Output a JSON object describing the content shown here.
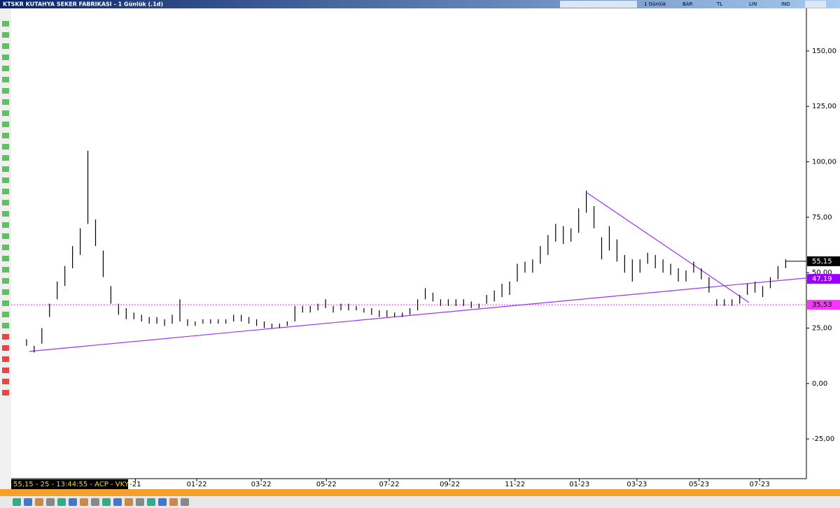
{
  "window": {
    "title": "KTSKR KUTAHYA SEKER FABRIKASI - 1 Günlük (.1d)",
    "toolbar": [
      "1 Günlük",
      "BAR",
      "TL",
      "LIN",
      "IND"
    ],
    "status": "55,15 - 25 - 13:44:55 - ACP - VKY"
  },
  "chart_data": {
    "type": "ohlc",
    "color": "#000000",
    "high": [
      20,
      17,
      25,
      36,
      46,
      53,
      62,
      70,
      105,
      74,
      60,
      44,
      36,
      34,
      32,
      31,
      30,
      30,
      29,
      31,
      38,
      29,
      28,
      29,
      29,
      29,
      29,
      31,
      31,
      30,
      29,
      28,
      27,
      27,
      28,
      35,
      35,
      35,
      36,
      38,
      35,
      36,
      36,
      35,
      34,
      34,
      33,
      33,
      32,
      32,
      34,
      38,
      43,
      41,
      38,
      38,
      38,
      38,
      37,
      36,
      40,
      42,
      45,
      46,
      54,
      55,
      56,
      62,
      67,
      72,
      71,
      70,
      79,
      87,
      80,
      66,
      71,
      65,
      58,
      56,
      56,
      59,
      58,
      56,
      54,
      52,
      51,
      55,
      52,
      48,
      38,
      38,
      38,
      40,
      45,
      46,
      44,
      48,
      53,
      56
    ],
    "low": [
      17,
      14,
      18,
      30,
      38,
      44,
      52,
      58,
      72,
      62,
      48,
      36,
      31,
      29,
      29,
      28,
      27,
      27,
      26,
      27,
      28,
      26,
      26,
      27,
      27,
      27,
      27,
      28,
      28,
      27,
      26,
      25,
      25,
      25,
      26,
      28,
      32,
      32,
      33,
      34,
      32,
      33,
      33,
      33,
      32,
      31,
      30,
      30,
      30,
      30,
      31,
      33,
      38,
      37,
      35,
      35,
      35,
      35,
      34,
      34,
      36,
      37,
      39,
      40,
      46,
      50,
      50,
      54,
      58,
      64,
      63,
      64,
      68,
      77,
      70,
      56,
      60,
      55,
      50,
      46,
      50,
      54,
      52,
      50,
      49,
      46,
      46,
      50,
      47,
      41,
      35,
      35,
      35,
      36,
      40,
      41,
      39,
      43,
      47,
      52
    ],
    "xlim": [
      -2.0,
      101.7
    ],
    "xticks": [
      {
        "value": 14.2,
        "label": "-21"
      },
      {
        "value": 22.2,
        "label": "01-22"
      },
      {
        "value": 30.6,
        "label": "03-22"
      },
      {
        "value": 39.1,
        "label": "05-22"
      },
      {
        "value": 47.3,
        "label": "07-22"
      },
      {
        "value": 55.2,
        "label": "09-22"
      },
      {
        "value": 63.7,
        "label": "11-22"
      },
      {
        "value": 72.1,
        "label": "01-23"
      },
      {
        "value": 79.6,
        "label": "03-23"
      },
      {
        "value": 87.7,
        "label": "05-23"
      },
      {
        "value": 95.6,
        "label": "07-23"
      }
    ],
    "ylim": [
      -42.9,
      169.2
    ],
    "yticks": [
      {
        "value": -25,
        "label": "-25,00"
      },
      {
        "value": 0,
        "label": "0,00"
      },
      {
        "value": 25,
        "label": "25,00"
      },
      {
        "value": 50,
        "label": "50,00"
      },
      {
        "value": 75,
        "label": "75,00"
      },
      {
        "value": 100,
        "label": "100,00"
      },
      {
        "value": 125,
        "label": "125,00"
      },
      {
        "value": 150,
        "label": "150,00"
      }
    ],
    "trendlines": [
      {
        "x": [
          0.37,
          101.7
        ],
        "y": [
          14.5,
          47.6
        ],
        "color": "#9933ff"
      },
      {
        "x": [
          73.1,
          94.2
        ],
        "y": [
          86,
          36.6
        ],
        "color": "#9933ff"
      }
    ],
    "price_labels": [
      {
        "value": 55.15,
        "label": "55,15",
        "color": "#000000",
        "text_color": "#ffffff"
      },
      {
        "value": 47.19,
        "label": "47,19",
        "color": "#9900ff",
        "text_color": "#ffffff"
      },
      {
        "value": 35.53,
        "label": "35,53",
        "color": "#ff33ff",
        "text_color": "#000000"
      }
    ]
  }
}
